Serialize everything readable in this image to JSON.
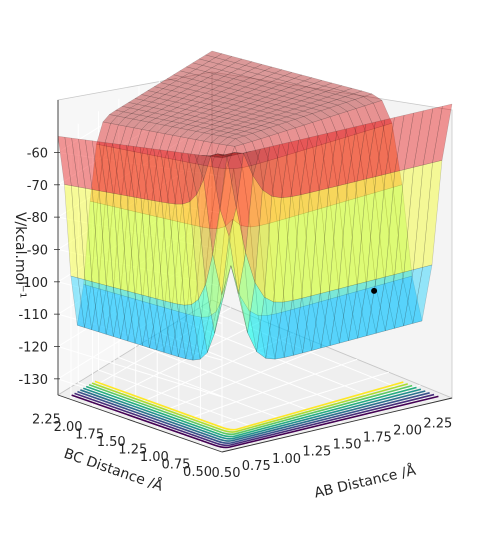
{
  "chart_data": {
    "type": "surface",
    "projection": "3d",
    "xlabel": "AB Distance /Å",
    "ylabel": "BC Distance /Å",
    "zlabel": "V/kcal.mol⁻¹",
    "x_ticks": [
      "0.50",
      "0.75",
      "1.00",
      "1.25",
      "1.50",
      "1.75",
      "2.00",
      "2.25"
    ],
    "y_ticks": [
      "0.50",
      "0.75",
      "1.00",
      "1.25",
      "1.50",
      "1.75",
      "2.00",
      "2.25"
    ],
    "z_ticks": [
      "-60",
      "-70",
      "-80",
      "-90",
      "-100",
      "-110",
      "-120",
      "-130"
    ],
    "xlim": [
      0.5,
      2.4
    ],
    "ylim": [
      0.5,
      2.4
    ],
    "zlim": [
      -135,
      -55
    ],
    "grid": true,
    "colormap": "jet",
    "surface_alpha": 0.4,
    "contour_colormap": "viridis",
    "marked_point": {
      "x": 2.0,
      "y": 0.75,
      "z": -105.5
    }
  }
}
